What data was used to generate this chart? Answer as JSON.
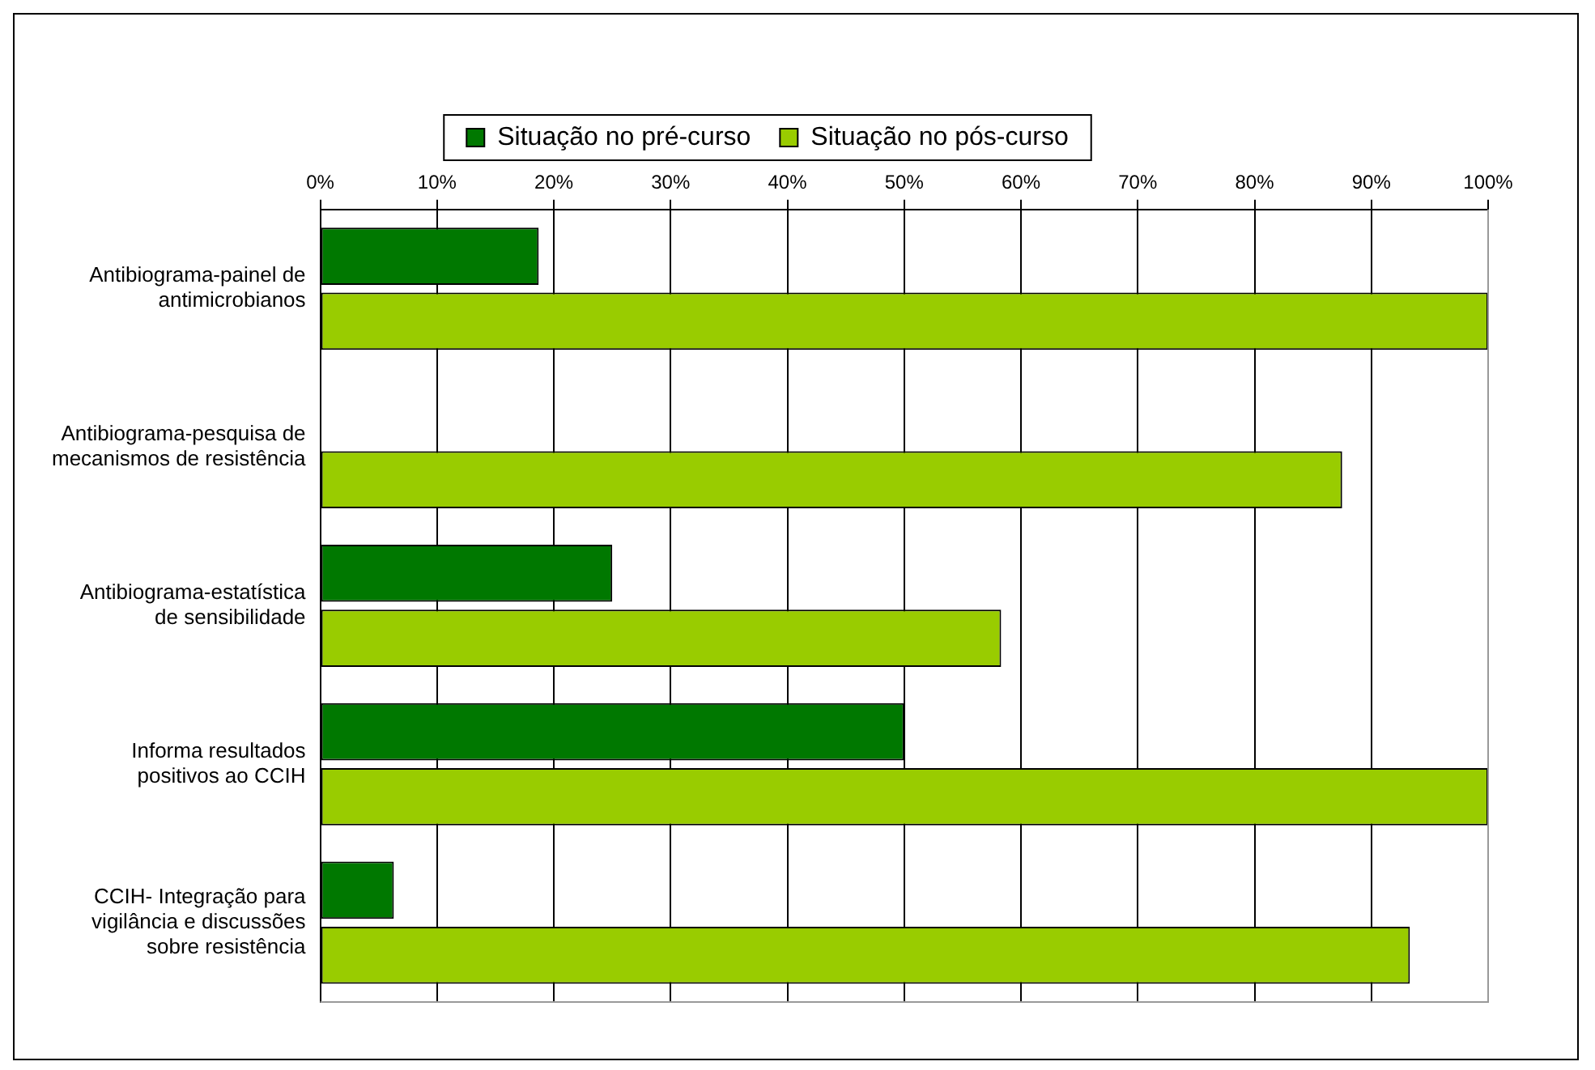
{
  "chart_data": {
    "type": "bar",
    "orientation": "horizontal",
    "categories": [
      "Antibiograma-painel de antimicrobianos",
      "Antibiograma-pesquisa de mecanismos de resistência",
      "Antibiograma-estatística de sensibilidade",
      "Informa resultados positivos ao CCIH",
      "CCIH- Integração para vigilância e discussões sobre resistência"
    ],
    "series": [
      {
        "name": "Situação no pré-curso",
        "color": "#007800",
        "values": [
          18.7,
          0,
          25,
          50,
          6.3
        ]
      },
      {
        "name": "Situação no pós-curso",
        "color": "#99cc00",
        "values": [
          100,
          87.5,
          58.3,
          100,
          93.3
        ]
      }
    ],
    "xlim": [
      0,
      100
    ],
    "xticks": [
      {
        "value": 0,
        "label": "0%"
      },
      {
        "value": 10,
        "label": "10%"
      },
      {
        "value": 20,
        "label": "20%"
      },
      {
        "value": 30,
        "label": "30%"
      },
      {
        "value": 40,
        "label": "40%"
      },
      {
        "value": 50,
        "label": "50%"
      },
      {
        "value": 60,
        "label": "60%"
      },
      {
        "value": 70,
        "label": "70%"
      },
      {
        "value": 80,
        "label": "80%"
      },
      {
        "value": 90,
        "label": "90%"
      },
      {
        "value": 100,
        "label": "100%"
      }
    ],
    "grid": "x",
    "legend": "top"
  }
}
